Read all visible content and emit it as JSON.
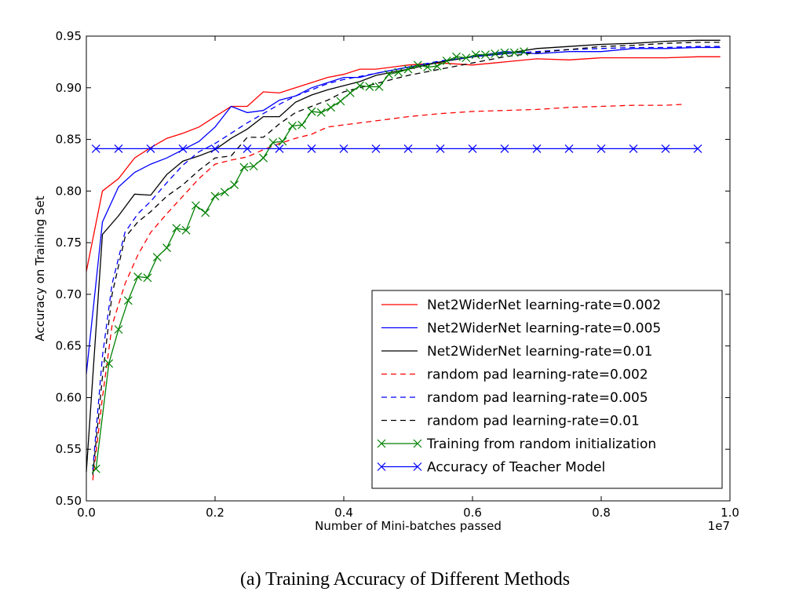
{
  "caption": "(a) Training Accuracy of Different Methods",
  "chart_data": {
    "type": "line",
    "title": "",
    "xlabel": "Number of Mini-batches passed",
    "ylabel": "Accuracy on Training Set",
    "x_scale_label": "1e7",
    "xlim": [
      0.0,
      1.0
    ],
    "ylim": [
      0.5,
      0.95
    ],
    "x_ticks": [
      "0.0",
      "0.2",
      "0.4",
      "0.6",
      "0.8",
      "1.0"
    ],
    "y_ticks": [
      "0.50",
      "0.55",
      "0.60",
      "0.65",
      "0.70",
      "0.75",
      "0.80",
      "0.85",
      "0.90",
      "0.95"
    ],
    "grid": false,
    "legend_position": "lower-right",
    "series": [
      {
        "name": "Net2WiderNet learning-rate=0.002",
        "color": "#ff0000",
        "style": "solid",
        "marker": "none",
        "points": [
          [
            0.0,
            0.722
          ],
          [
            0.025,
            0.8
          ],
          [
            0.05,
            0.812
          ],
          [
            0.075,
            0.832
          ],
          [
            0.1,
            0.842
          ],
          [
            0.125,
            0.851
          ],
          [
            0.15,
            0.856
          ],
          [
            0.175,
            0.862
          ],
          [
            0.2,
            0.872
          ],
          [
            0.225,
            0.882
          ],
          [
            0.25,
            0.882
          ],
          [
            0.275,
            0.896
          ],
          [
            0.3,
            0.895
          ],
          [
            0.325,
            0.9
          ],
          [
            0.35,
            0.905
          ],
          [
            0.375,
            0.91
          ],
          [
            0.4,
            0.913
          ],
          [
            0.425,
            0.918
          ],
          [
            0.45,
            0.918
          ],
          [
            0.5,
            0.922
          ],
          [
            0.55,
            0.924
          ],
          [
            0.6,
            0.922
          ],
          [
            0.65,
            0.925
          ],
          [
            0.7,
            0.928
          ],
          [
            0.75,
            0.927
          ],
          [
            0.8,
            0.929
          ],
          [
            0.85,
            0.929
          ],
          [
            0.9,
            0.929
          ],
          [
            0.95,
            0.93
          ],
          [
            0.985,
            0.93
          ]
        ]
      },
      {
        "name": "Net2WiderNet learning-rate=0.005",
        "color": "#0000ff",
        "style": "solid",
        "marker": "none",
        "points": [
          [
            0.0,
            0.623
          ],
          [
            0.025,
            0.77
          ],
          [
            0.05,
            0.804
          ],
          [
            0.075,
            0.818
          ],
          [
            0.1,
            0.826
          ],
          [
            0.125,
            0.832
          ],
          [
            0.15,
            0.84
          ],
          [
            0.175,
            0.848
          ],
          [
            0.2,
            0.862
          ],
          [
            0.225,
            0.882
          ],
          [
            0.25,
            0.876
          ],
          [
            0.275,
            0.878
          ],
          [
            0.3,
            0.888
          ],
          [
            0.325,
            0.892
          ],
          [
            0.35,
            0.9
          ],
          [
            0.375,
            0.905
          ],
          [
            0.4,
            0.91
          ],
          [
            0.425,
            0.91
          ],
          [
            0.45,
            0.914
          ],
          [
            0.5,
            0.92
          ],
          [
            0.55,
            0.925
          ],
          [
            0.6,
            0.93
          ],
          [
            0.65,
            0.935
          ],
          [
            0.7,
            0.933
          ],
          [
            0.75,
            0.935
          ],
          [
            0.8,
            0.935
          ],
          [
            0.85,
            0.938
          ],
          [
            0.9,
            0.938
          ],
          [
            0.95,
            0.939
          ],
          [
            0.985,
            0.939
          ]
        ]
      },
      {
        "name": "Net2WiderNet learning-rate=0.01",
        "color": "#000000",
        "style": "solid",
        "marker": "none",
        "points": [
          [
            0.0,
            0.528
          ],
          [
            0.025,
            0.758
          ],
          [
            0.05,
            0.776
          ],
          [
            0.075,
            0.797
          ],
          [
            0.1,
            0.796
          ],
          [
            0.125,
            0.816
          ],
          [
            0.15,
            0.829
          ],
          [
            0.175,
            0.834
          ],
          [
            0.2,
            0.84
          ],
          [
            0.225,
            0.851
          ],
          [
            0.25,
            0.86
          ],
          [
            0.275,
            0.872
          ],
          [
            0.3,
            0.872
          ],
          [
            0.325,
            0.886
          ],
          [
            0.35,
            0.893
          ],
          [
            0.375,
            0.898
          ],
          [
            0.4,
            0.902
          ],
          [
            0.425,
            0.906
          ],
          [
            0.45,
            0.912
          ],
          [
            0.5,
            0.918
          ],
          [
            0.55,
            0.925
          ],
          [
            0.6,
            0.93
          ],
          [
            0.65,
            0.933
          ],
          [
            0.7,
            0.938
          ],
          [
            0.75,
            0.94
          ],
          [
            0.8,
            0.942
          ],
          [
            0.85,
            0.943
          ],
          [
            0.9,
            0.945
          ],
          [
            0.95,
            0.946
          ],
          [
            0.985,
            0.946
          ]
        ]
      },
      {
        "name": "random pad learning-rate=0.002",
        "color": "#ff0000",
        "style": "dashed",
        "marker": "none",
        "points": [
          [
            0.01,
            0.52
          ],
          [
            0.025,
            0.6
          ],
          [
            0.04,
            0.67
          ],
          [
            0.06,
            0.71
          ],
          [
            0.08,
            0.738
          ],
          [
            0.1,
            0.76
          ],
          [
            0.125,
            0.778
          ],
          [
            0.15,
            0.795
          ],
          [
            0.175,
            0.812
          ],
          [
            0.2,
            0.826
          ],
          [
            0.225,
            0.83
          ],
          [
            0.25,
            0.833
          ],
          [
            0.275,
            0.84
          ],
          [
            0.3,
            0.846
          ],
          [
            0.325,
            0.851
          ],
          [
            0.35,
            0.855
          ],
          [
            0.375,
            0.862
          ],
          [
            0.4,
            0.864
          ],
          [
            0.45,
            0.868
          ],
          [
            0.5,
            0.872
          ],
          [
            0.55,
            0.875
          ],
          [
            0.6,
            0.877
          ],
          [
            0.65,
            0.878
          ],
          [
            0.7,
            0.879
          ],
          [
            0.75,
            0.881
          ],
          [
            0.8,
            0.882
          ],
          [
            0.85,
            0.883
          ],
          [
            0.9,
            0.883
          ],
          [
            0.93,
            0.884
          ]
        ]
      },
      {
        "name": "random pad learning-rate=0.005",
        "color": "#0000ff",
        "style": "dashed",
        "marker": "none",
        "points": [
          [
            0.01,
            0.53
          ],
          [
            0.025,
            0.64
          ],
          [
            0.04,
            0.71
          ],
          [
            0.06,
            0.76
          ],
          [
            0.08,
            0.778
          ],
          [
            0.1,
            0.79
          ],
          [
            0.125,
            0.808
          ],
          [
            0.15,
            0.825
          ],
          [
            0.175,
            0.838
          ],
          [
            0.2,
            0.846
          ],
          [
            0.225,
            0.856
          ],
          [
            0.25,
            0.866
          ],
          [
            0.275,
            0.875
          ],
          [
            0.3,
            0.884
          ],
          [
            0.325,
            0.892
          ],
          [
            0.35,
            0.898
          ],
          [
            0.375,
            0.904
          ],
          [
            0.4,
            0.908
          ],
          [
            0.45,
            0.914
          ],
          [
            0.5,
            0.92
          ],
          [
            0.55,
            0.926
          ],
          [
            0.6,
            0.93
          ],
          [
            0.65,
            0.933
          ],
          [
            0.7,
            0.935
          ],
          [
            0.75,
            0.937
          ],
          [
            0.8,
            0.938
          ],
          [
            0.85,
            0.939
          ],
          [
            0.9,
            0.939
          ],
          [
            0.95,
            0.94
          ],
          [
            0.985,
            0.94
          ]
        ]
      },
      {
        "name": "random pad learning-rate=0.01",
        "color": "#000000",
        "style": "dashed",
        "marker": "none",
        "points": [
          [
            0.01,
            0.525
          ],
          [
            0.025,
            0.62
          ],
          [
            0.04,
            0.7
          ],
          [
            0.06,
            0.755
          ],
          [
            0.08,
            0.77
          ],
          [
            0.1,
            0.78
          ],
          [
            0.125,
            0.795
          ],
          [
            0.15,
            0.806
          ],
          [
            0.175,
            0.82
          ],
          [
            0.2,
            0.832
          ],
          [
            0.225,
            0.834
          ],
          [
            0.25,
            0.852
          ],
          [
            0.275,
            0.852
          ],
          [
            0.3,
            0.865
          ],
          [
            0.325,
            0.876
          ],
          [
            0.35,
            0.882
          ],
          [
            0.375,
            0.888
          ],
          [
            0.4,
            0.896
          ],
          [
            0.45,
            0.904
          ],
          [
            0.5,
            0.912
          ],
          [
            0.55,
            0.918
          ],
          [
            0.6,
            0.924
          ],
          [
            0.65,
            0.93
          ],
          [
            0.7,
            0.934
          ],
          [
            0.75,
            0.937
          ],
          [
            0.8,
            0.94
          ],
          [
            0.85,
            0.941
          ],
          [
            0.9,
            0.943
          ],
          [
            0.95,
            0.944
          ],
          [
            0.985,
            0.944
          ]
        ]
      },
      {
        "name": "Training from random initialization",
        "color": "#008000",
        "style": "solid",
        "marker": "x",
        "points": [
          [
            0.015,
            0.531
          ],
          [
            0.035,
            0.633
          ],
          [
            0.05,
            0.666
          ],
          [
            0.065,
            0.694
          ],
          [
            0.08,
            0.717
          ],
          [
            0.095,
            0.716
          ],
          [
            0.11,
            0.736
          ],
          [
            0.125,
            0.745
          ],
          [
            0.14,
            0.764
          ],
          [
            0.155,
            0.762
          ],
          [
            0.17,
            0.786
          ],
          [
            0.185,
            0.779
          ],
          [
            0.2,
            0.795
          ],
          [
            0.215,
            0.799
          ],
          [
            0.23,
            0.806
          ],
          [
            0.245,
            0.823
          ],
          [
            0.26,
            0.824
          ],
          [
            0.275,
            0.832
          ],
          [
            0.29,
            0.847
          ],
          [
            0.305,
            0.848
          ],
          [
            0.32,
            0.863
          ],
          [
            0.335,
            0.864
          ],
          [
            0.35,
            0.877
          ],
          [
            0.365,
            0.876
          ],
          [
            0.38,
            0.881
          ],
          [
            0.395,
            0.887
          ],
          [
            0.41,
            0.895
          ],
          [
            0.425,
            0.902
          ],
          [
            0.44,
            0.901
          ],
          [
            0.455,
            0.901
          ],
          [
            0.47,
            0.913
          ],
          [
            0.485,
            0.915
          ],
          [
            0.5,
            0.918
          ],
          [
            0.515,
            0.922
          ],
          [
            0.53,
            0.92
          ],
          [
            0.545,
            0.921
          ],
          [
            0.56,
            0.926
          ],
          [
            0.575,
            0.93
          ],
          [
            0.59,
            0.929
          ],
          [
            0.605,
            0.932
          ],
          [
            0.62,
            0.932
          ],
          [
            0.635,
            0.933
          ],
          [
            0.65,
            0.934
          ],
          [
            0.665,
            0.934
          ],
          [
            0.68,
            0.935
          ]
        ]
      },
      {
        "name": "Accuracy of Teacher Model",
        "color": "#0000ff",
        "style": "solid",
        "marker": "x",
        "points": [
          [
            0.015,
            0.841
          ],
          [
            0.05,
            0.841
          ],
          [
            0.1,
            0.841
          ],
          [
            0.15,
            0.841
          ],
          [
            0.2,
            0.841
          ],
          [
            0.25,
            0.841
          ],
          [
            0.3,
            0.841
          ],
          [
            0.35,
            0.841
          ],
          [
            0.4,
            0.841
          ],
          [
            0.45,
            0.841
          ],
          [
            0.5,
            0.841
          ],
          [
            0.55,
            0.841
          ],
          [
            0.6,
            0.841
          ],
          [
            0.65,
            0.841
          ],
          [
            0.7,
            0.841
          ],
          [
            0.75,
            0.841
          ],
          [
            0.8,
            0.841
          ],
          [
            0.85,
            0.841
          ],
          [
            0.9,
            0.841
          ],
          [
            0.95,
            0.841
          ]
        ]
      }
    ]
  }
}
